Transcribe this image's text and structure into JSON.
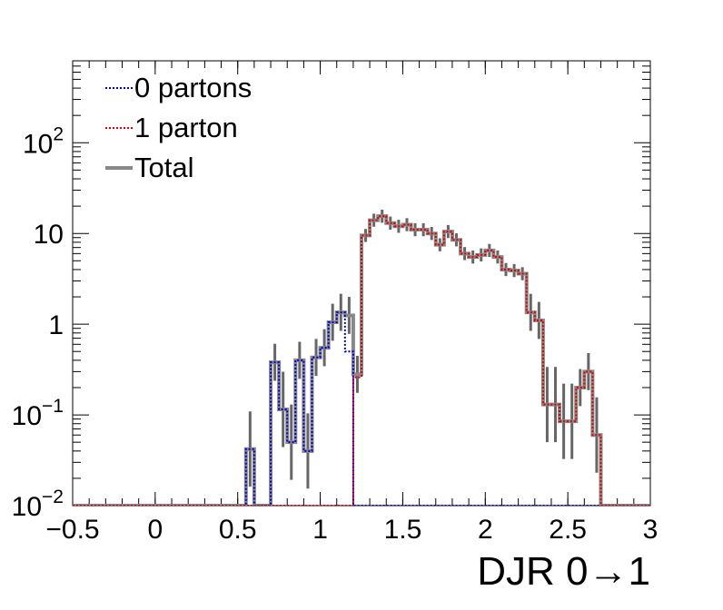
{
  "chart_data": {
    "type": "step-histogram",
    "xlabel": "DJR 0→1",
    "ylabel": "",
    "xlim": [
      -0.5,
      3.0
    ],
    "ylim": [
      0.01,
      800
    ],
    "yscale": "log",
    "x_ticks": [
      {
        "value": -0.5,
        "label": "−0.5"
      },
      {
        "value": 0,
        "label": "0"
      },
      {
        "value": 0.5,
        "label": "0.5"
      },
      {
        "value": 1,
        "label": "1"
      },
      {
        "value": 1.5,
        "label": "1.5"
      },
      {
        "value": 2,
        "label": "2"
      },
      {
        "value": 2.5,
        "label": "2.5"
      },
      {
        "value": 3,
        "label": "3"
      }
    ],
    "y_ticks": [
      {
        "value": 0.01,
        "base": "10",
        "exp": "−2"
      },
      {
        "value": 0.1,
        "base": "10",
        "exp": "−1"
      },
      {
        "value": 1,
        "base": "1",
        "exp": ""
      },
      {
        "value": 10,
        "base": "10",
        "exp": ""
      },
      {
        "value": 100,
        "base": "10",
        "exp": "2"
      }
    ],
    "legend_position": "top-left",
    "bin_edges_range": [
      -0.5,
      3.0
    ],
    "bin_count": 70,
    "series": [
      {
        "name": "0 partons",
        "color": "#0000cc",
        "style": "dotted",
        "values": [
          0.01,
          0.01,
          0.01,
          0.01,
          0.01,
          0.01,
          0.01,
          0.01,
          0.01,
          0.01,
          0.01,
          0.01,
          0.01,
          0.01,
          0.01,
          0.01,
          0.01,
          0.01,
          0.01,
          0.01,
          0.01,
          0.042,
          0.01,
          0.01,
          0.38,
          0.115,
          0.05,
          0.4,
          0.04,
          0.43,
          0.55,
          1.05,
          1.35,
          0.5,
          0.01,
          0.01,
          0.01,
          0.01,
          0.01,
          0.01,
          0.01,
          0.01,
          0.01,
          0.01,
          0.01,
          0.01,
          0.01,
          0.01,
          0.01,
          0.01,
          0.01,
          0.01,
          0.01,
          0.01,
          0.01,
          0.01,
          0.01,
          0.01,
          0.01,
          0.01,
          0.01,
          0.01,
          0.01,
          0.01,
          0.01,
          0.01,
          0.01,
          0.01,
          0.01,
          0.01
        ]
      },
      {
        "name": "1 parton",
        "color": "#dd0000",
        "style": "dotted",
        "values": [
          0.01,
          0.01,
          0.01,
          0.01,
          0.01,
          0.01,
          0.01,
          0.01,
          0.01,
          0.01,
          0.01,
          0.01,
          0.01,
          0.01,
          0.01,
          0.01,
          0.01,
          0.01,
          0.01,
          0.01,
          0.01,
          0.01,
          0.01,
          0.01,
          0.01,
          0.01,
          0.01,
          0.01,
          0.01,
          0.01,
          0.01,
          0.01,
          0.01,
          0.01,
          0.26,
          9.5,
          14,
          15.5,
          13,
          12,
          12.5,
          11,
          11,
          10,
          7.5,
          10.5,
          8.5,
          6,
          5.5,
          5.8,
          6.5,
          5.5,
          4,
          3.9,
          3.6,
          1.35,
          1.1,
          0.13,
          0.13,
          0.085,
          0.085,
          0.2,
          0.3,
          0.06,
          0.01,
          0.01,
          0.01,
          0.01,
          0.01,
          0.01
        ]
      },
      {
        "name": "Total",
        "color": "#888888",
        "style": "solid",
        "values": [
          0.01,
          0.01,
          0.01,
          0.01,
          0.01,
          0.01,
          0.01,
          0.01,
          0.01,
          0.01,
          0.01,
          0.01,
          0.01,
          0.01,
          0.01,
          0.01,
          0.01,
          0.01,
          0.01,
          0.01,
          0.01,
          0.042,
          0.01,
          0.01,
          0.38,
          0.115,
          0.05,
          0.4,
          0.04,
          0.43,
          0.55,
          1.05,
          1.35,
          1.25,
          0.28,
          9.5,
          14,
          15.5,
          13,
          12,
          12.5,
          11,
          11,
          10,
          7.5,
          10.5,
          8.5,
          6,
          5.5,
          5.8,
          6.5,
          5.5,
          4,
          3.9,
          3.6,
          1.35,
          1.1,
          0.13,
          0.13,
          0.085,
          0.085,
          0.2,
          0.3,
          0.06,
          0.01,
          0.01,
          0.01,
          0.01,
          0.01,
          0.01
        ]
      }
    ]
  }
}
